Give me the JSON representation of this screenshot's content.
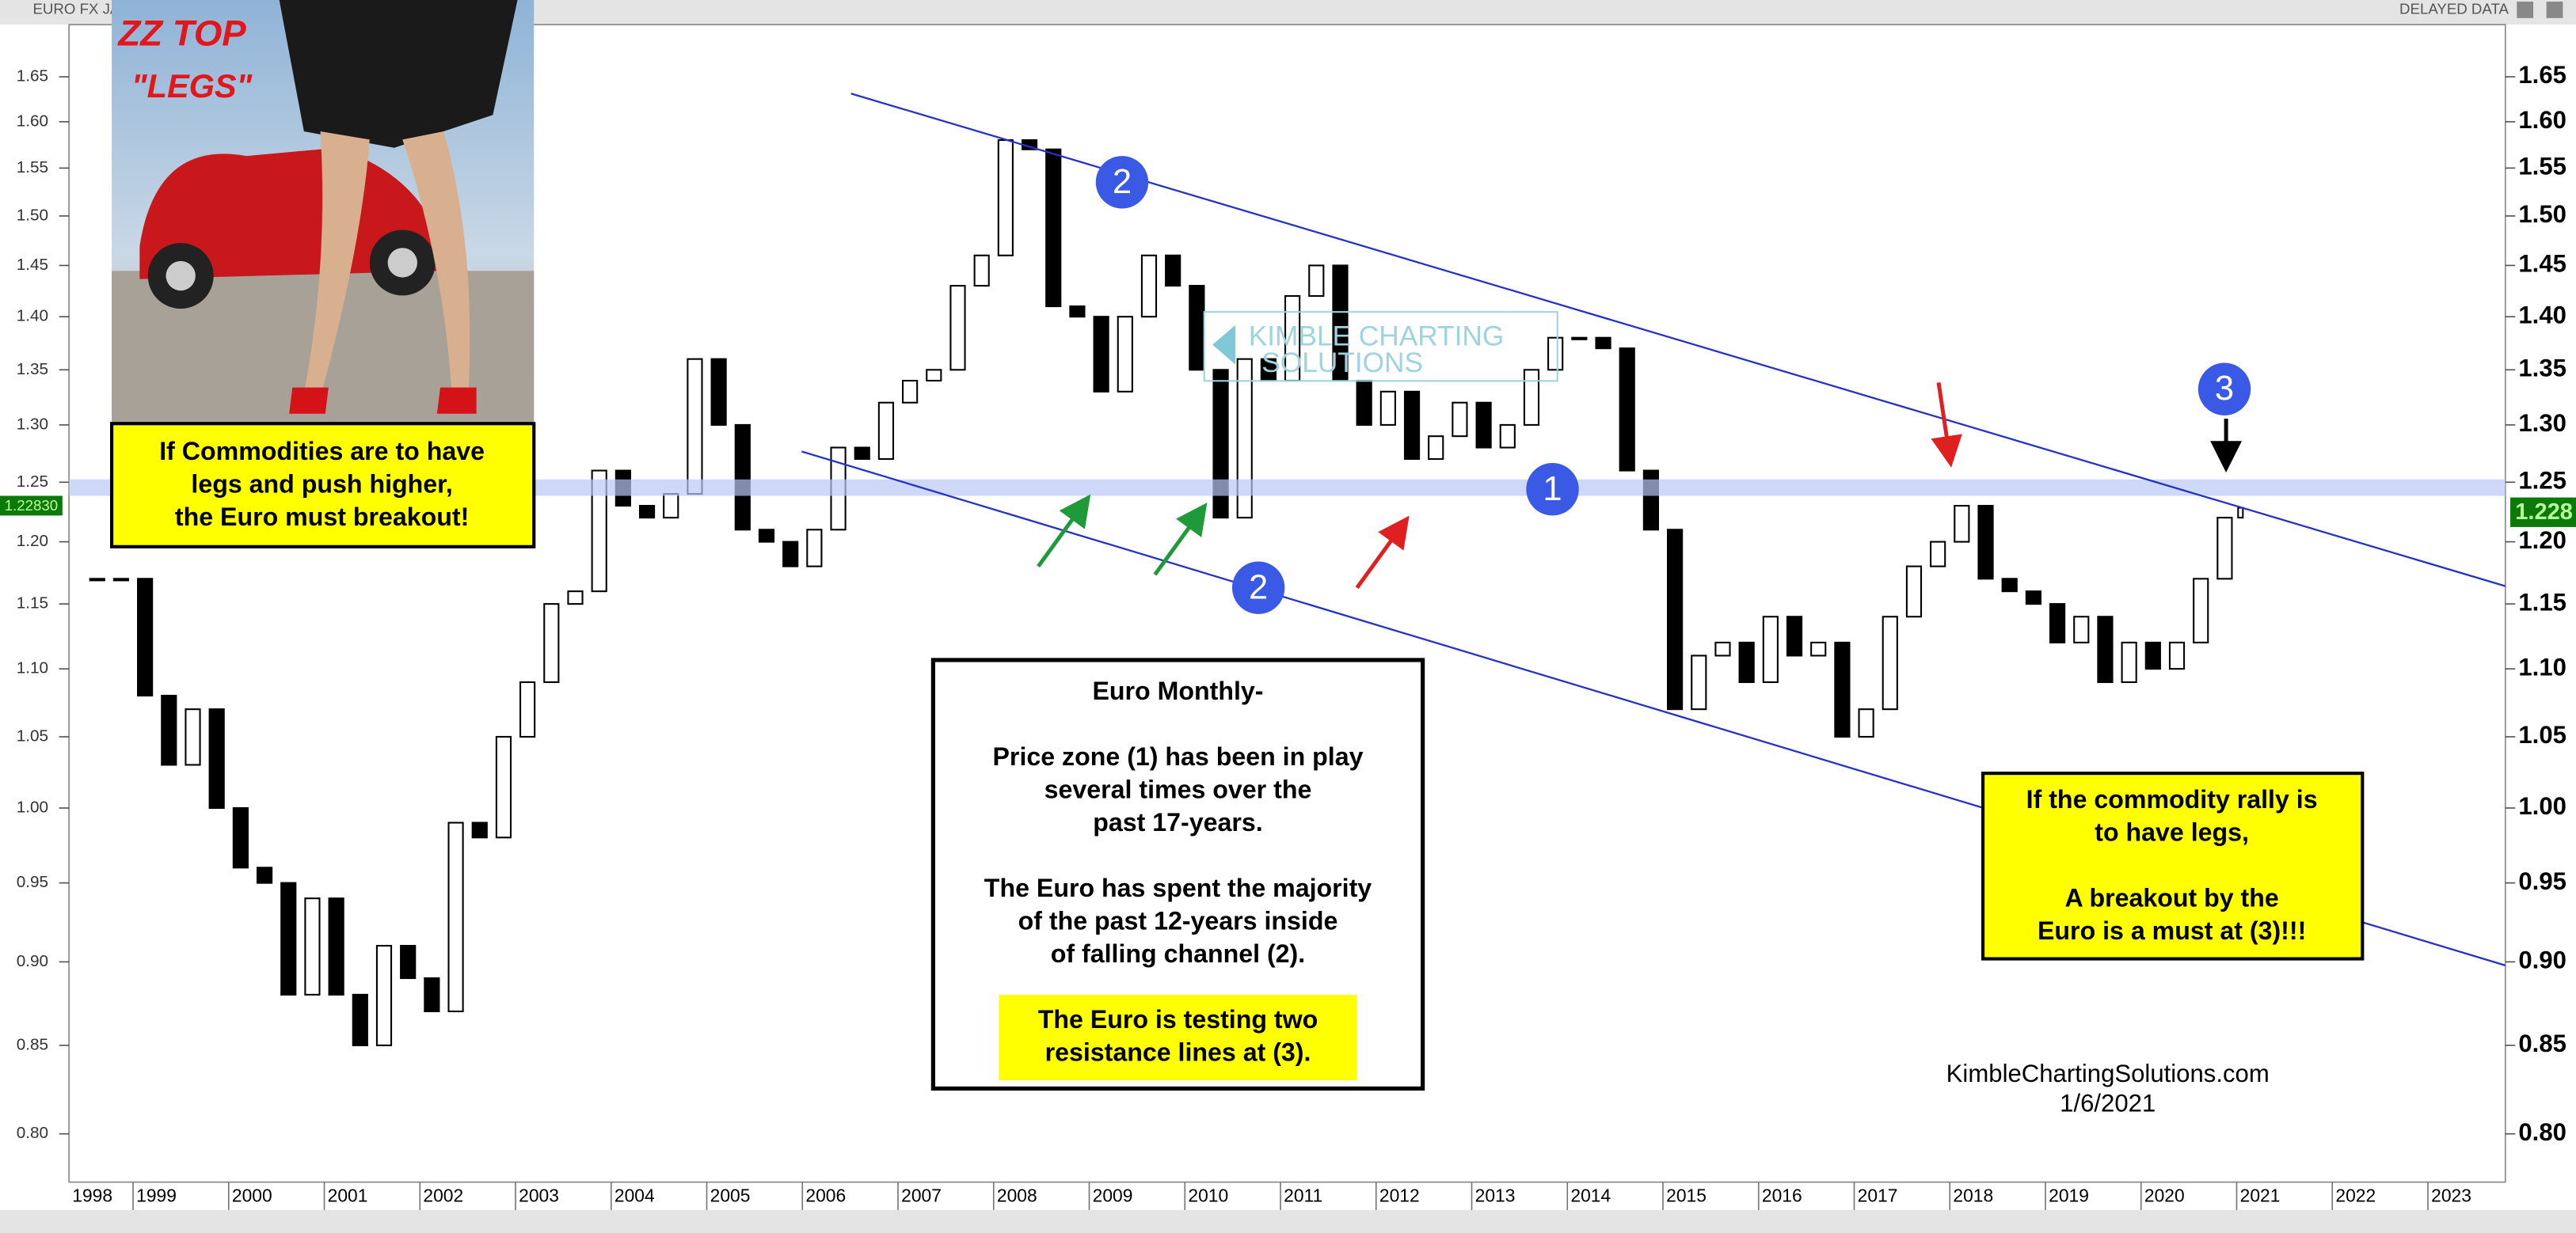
{
  "chart_data": {
    "type": "candlestick",
    "title": "EURO FX JA",
    "source_note": "DELAYED DATA",
    "log_scale": true,
    "grid": false,
    "up_color": "#ffffff",
    "down_color": "#000000",
    "x": [
      1998.625,
      1998.875,
      1999.125,
      1999.375,
      1999.625,
      1999.875,
      2000.125,
      2000.375,
      2000.625,
      2000.875,
      2001.125,
      2001.375,
      2001.625,
      2001.875,
      2002.125,
      2002.375,
      2002.625,
      2002.875,
      2003.125,
      2003.375,
      2003.625,
      2003.875,
      2004.125,
      2004.375,
      2004.625,
      2004.875,
      2005.125,
      2005.375,
      2005.625,
      2005.875,
      2006.125,
      2006.375,
      2006.625,
      2006.875,
      2007.125,
      2007.375,
      2007.625,
      2007.875,
      2008.125,
      2008.375,
      2008.625,
      2008.875,
      2009.125,
      2009.375,
      2009.625,
      2009.875,
      2010.125,
      2010.375,
      2010.625,
      2010.875,
      2011.125,
      2011.375,
      2011.625,
      2011.875,
      2012.125,
      2012.375,
      2012.625,
      2012.875,
      2013.125,
      2013.375,
      2013.625,
      2013.875,
      2014.125,
      2014.375,
      2014.625,
      2014.875,
      2015.125,
      2015.375,
      2015.625,
      2015.875,
      2016.125,
      2016.375,
      2016.625,
      2016.875,
      2017.125,
      2017.375,
      2017.625,
      2017.875,
      2018.125,
      2018.375,
      2018.625,
      2018.875,
      2019.125,
      2019.375,
      2019.625,
      2019.875,
      2020.125,
      2020.375,
      2020.625,
      2020.875,
      2021.04
    ],
    "values": [
      1.17,
      1.17,
      1.08,
      1.03,
      1.07,
      1.0,
      0.96,
      0.95,
      0.88,
      0.94,
      0.88,
      0.85,
      0.91,
      0.89,
      0.87,
      0.99,
      0.98,
      1.05,
      1.09,
      1.15,
      1.16,
      1.26,
      1.23,
      1.22,
      1.24,
      1.36,
      1.3,
      1.21,
      1.2,
      1.18,
      1.21,
      1.28,
      1.27,
      1.32,
      1.34,
      1.35,
      1.43,
      1.46,
      1.58,
      1.57,
      1.41,
      1.4,
      1.33,
      1.4,
      1.46,
      1.43,
      1.35,
      1.22,
      1.36,
      1.34,
      1.42,
      1.45,
      1.34,
      1.3,
      1.33,
      1.27,
      1.29,
      1.32,
      1.28,
      1.3,
      1.35,
      1.38,
      1.38,
      1.37,
      1.26,
      1.21,
      1.07,
      1.11,
      1.12,
      1.09,
      1.14,
      1.11,
      1.12,
      1.05,
      1.07,
      1.14,
      1.18,
      1.2,
      1.23,
      1.17,
      1.16,
      1.15,
      1.12,
      1.14,
      1.09,
      1.12,
      1.1,
      1.12,
      1.17,
      1.22,
      1.2283
    ],
    "last_value": 1.2283,
    "last_value_labels": [
      "1.22830",
      "1.228"
    ],
    "xlim": [
      1998.33,
      2023.81
    ],
    "xticks": [
      1998,
      1999,
      2000,
      2001,
      2002,
      2003,
      2004,
      2005,
      2006,
      2007,
      2008,
      2009,
      2010,
      2011,
      2012,
      2013,
      2014,
      2015,
      2016,
      2017,
      2018,
      2019,
      2020,
      2021,
      2022,
      2023
    ],
    "ylim": [
      0.774,
      1.71
    ],
    "yticks": [
      {
        "value": 0.8,
        "label": "0.80"
      },
      0.85,
      {
        "value": 0.9,
        "label": "0.90"
      },
      0.95,
      {
        "value": 1.0,
        "label": "1.00"
      },
      1.05,
      {
        "value": 1.1,
        "label": "1.10"
      },
      1.15,
      {
        "value": 1.2,
        "label": "1.20"
      },
      1.25,
      {
        "value": 1.3,
        "label": "1.30"
      },
      1.35,
      {
        "value": 1.4,
        "label": "1.40"
      },
      1.45,
      {
        "value": 1.5,
        "label": "1.50"
      },
      1.55,
      {
        "value": 1.6,
        "label": "1.60"
      },
      1.65
    ],
    "callouts": [
      "2",
      "1",
      "2",
      "3"
    ],
    "watermark": [
      "KIMBLE CHARTING",
      "SOLUTIONS"
    ],
    "album": [
      "ZZ TOP",
      "\"LEGS\""
    ],
    "left_box": [
      "If Commodities are to have",
      "legs and push higher,",
      "the Euro must breakout!"
    ],
    "center_box": [
      "Euro Monthly-",
      "Price zone (1) has been in play",
      "several times over the",
      "past 17-years.",
      "The Euro has spent the majority",
      "of the past 12-years inside",
      "of falling channel (2)."
    ],
    "center_highlight": [
      "The Euro is testing two",
      "resistance lines at (3)."
    ],
    "right_box": [
      "If the commodity rally is",
      "to have legs,",
      "A breakout by the",
      "Euro is a must at (3)!!!"
    ],
    "credit": [
      "KimbleChartingSolutions.com",
      "1/6/2021"
    ]
  }
}
